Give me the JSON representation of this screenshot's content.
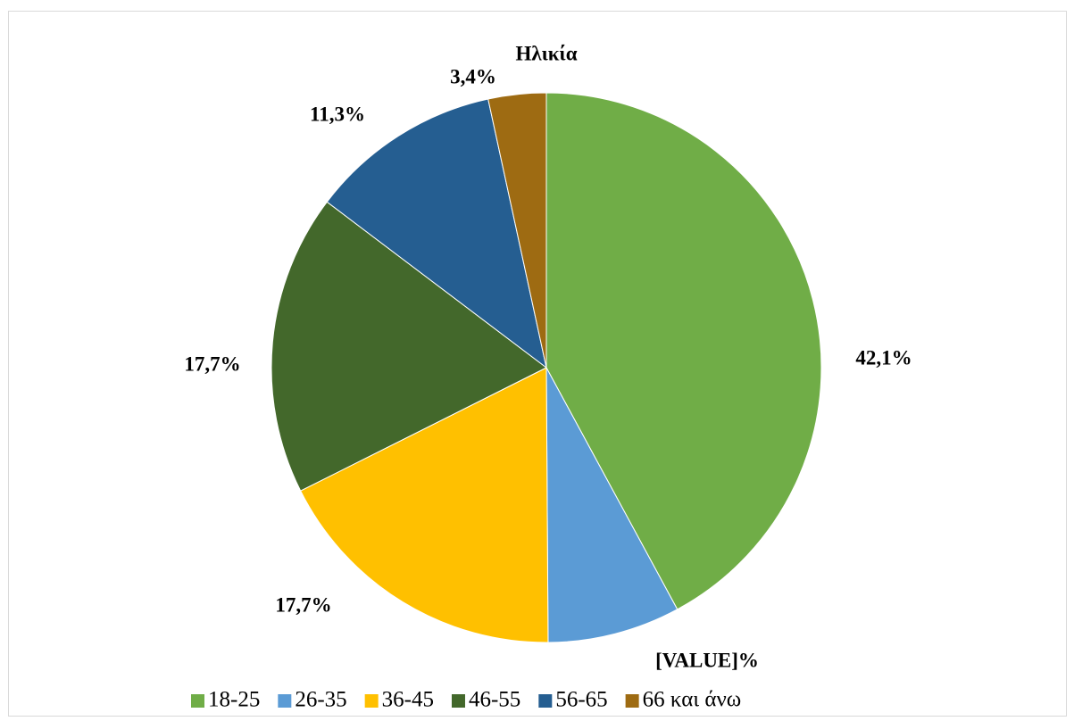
{
  "chart_data": {
    "type": "pie",
    "title": "Ηλικία",
    "categories": [
      "18-25",
      "26-35",
      "36-45",
      "46-55",
      "56-65",
      "66 και άνω"
    ],
    "values": [
      42.1,
      7.8,
      17.7,
      17.7,
      11.3,
      3.4
    ],
    "value_labels": [
      "42,1%",
      "[VALUE]%",
      "17,7%",
      "17,7%",
      "11,3%",
      "3,4%"
    ],
    "colors": [
      "#70ad47",
      "#5b9bd5",
      "#ffc000",
      "#43682b",
      "#255e91",
      "#9e6b12"
    ],
    "legend": "bottom"
  }
}
